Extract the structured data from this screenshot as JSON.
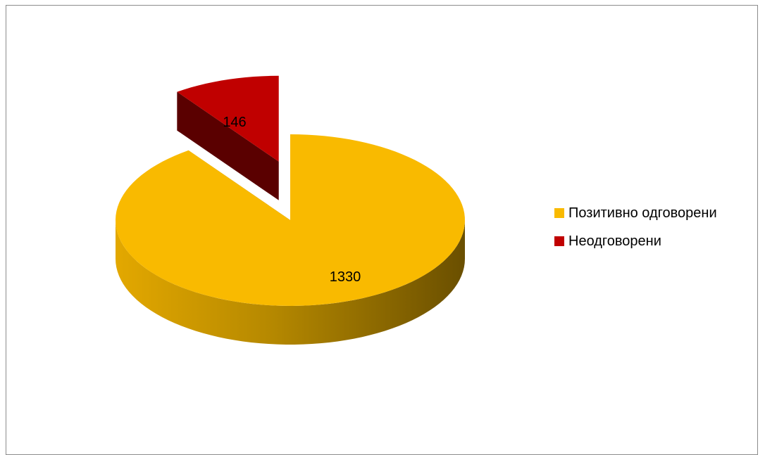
{
  "chart_data": {
    "type": "pie",
    "title": "",
    "categories": [
      "Позитивно одговорени",
      "Неодговорени"
    ],
    "values": [
      1330,
      146
    ],
    "colors": [
      "#F9BA00",
      "#C00000"
    ],
    "side_colors": [
      "#8a6800",
      "#5a0000"
    ],
    "exploded": [
      false,
      true
    ],
    "style": "3d",
    "legend_position": "right",
    "data_labels": [
      "1330",
      "146"
    ]
  }
}
